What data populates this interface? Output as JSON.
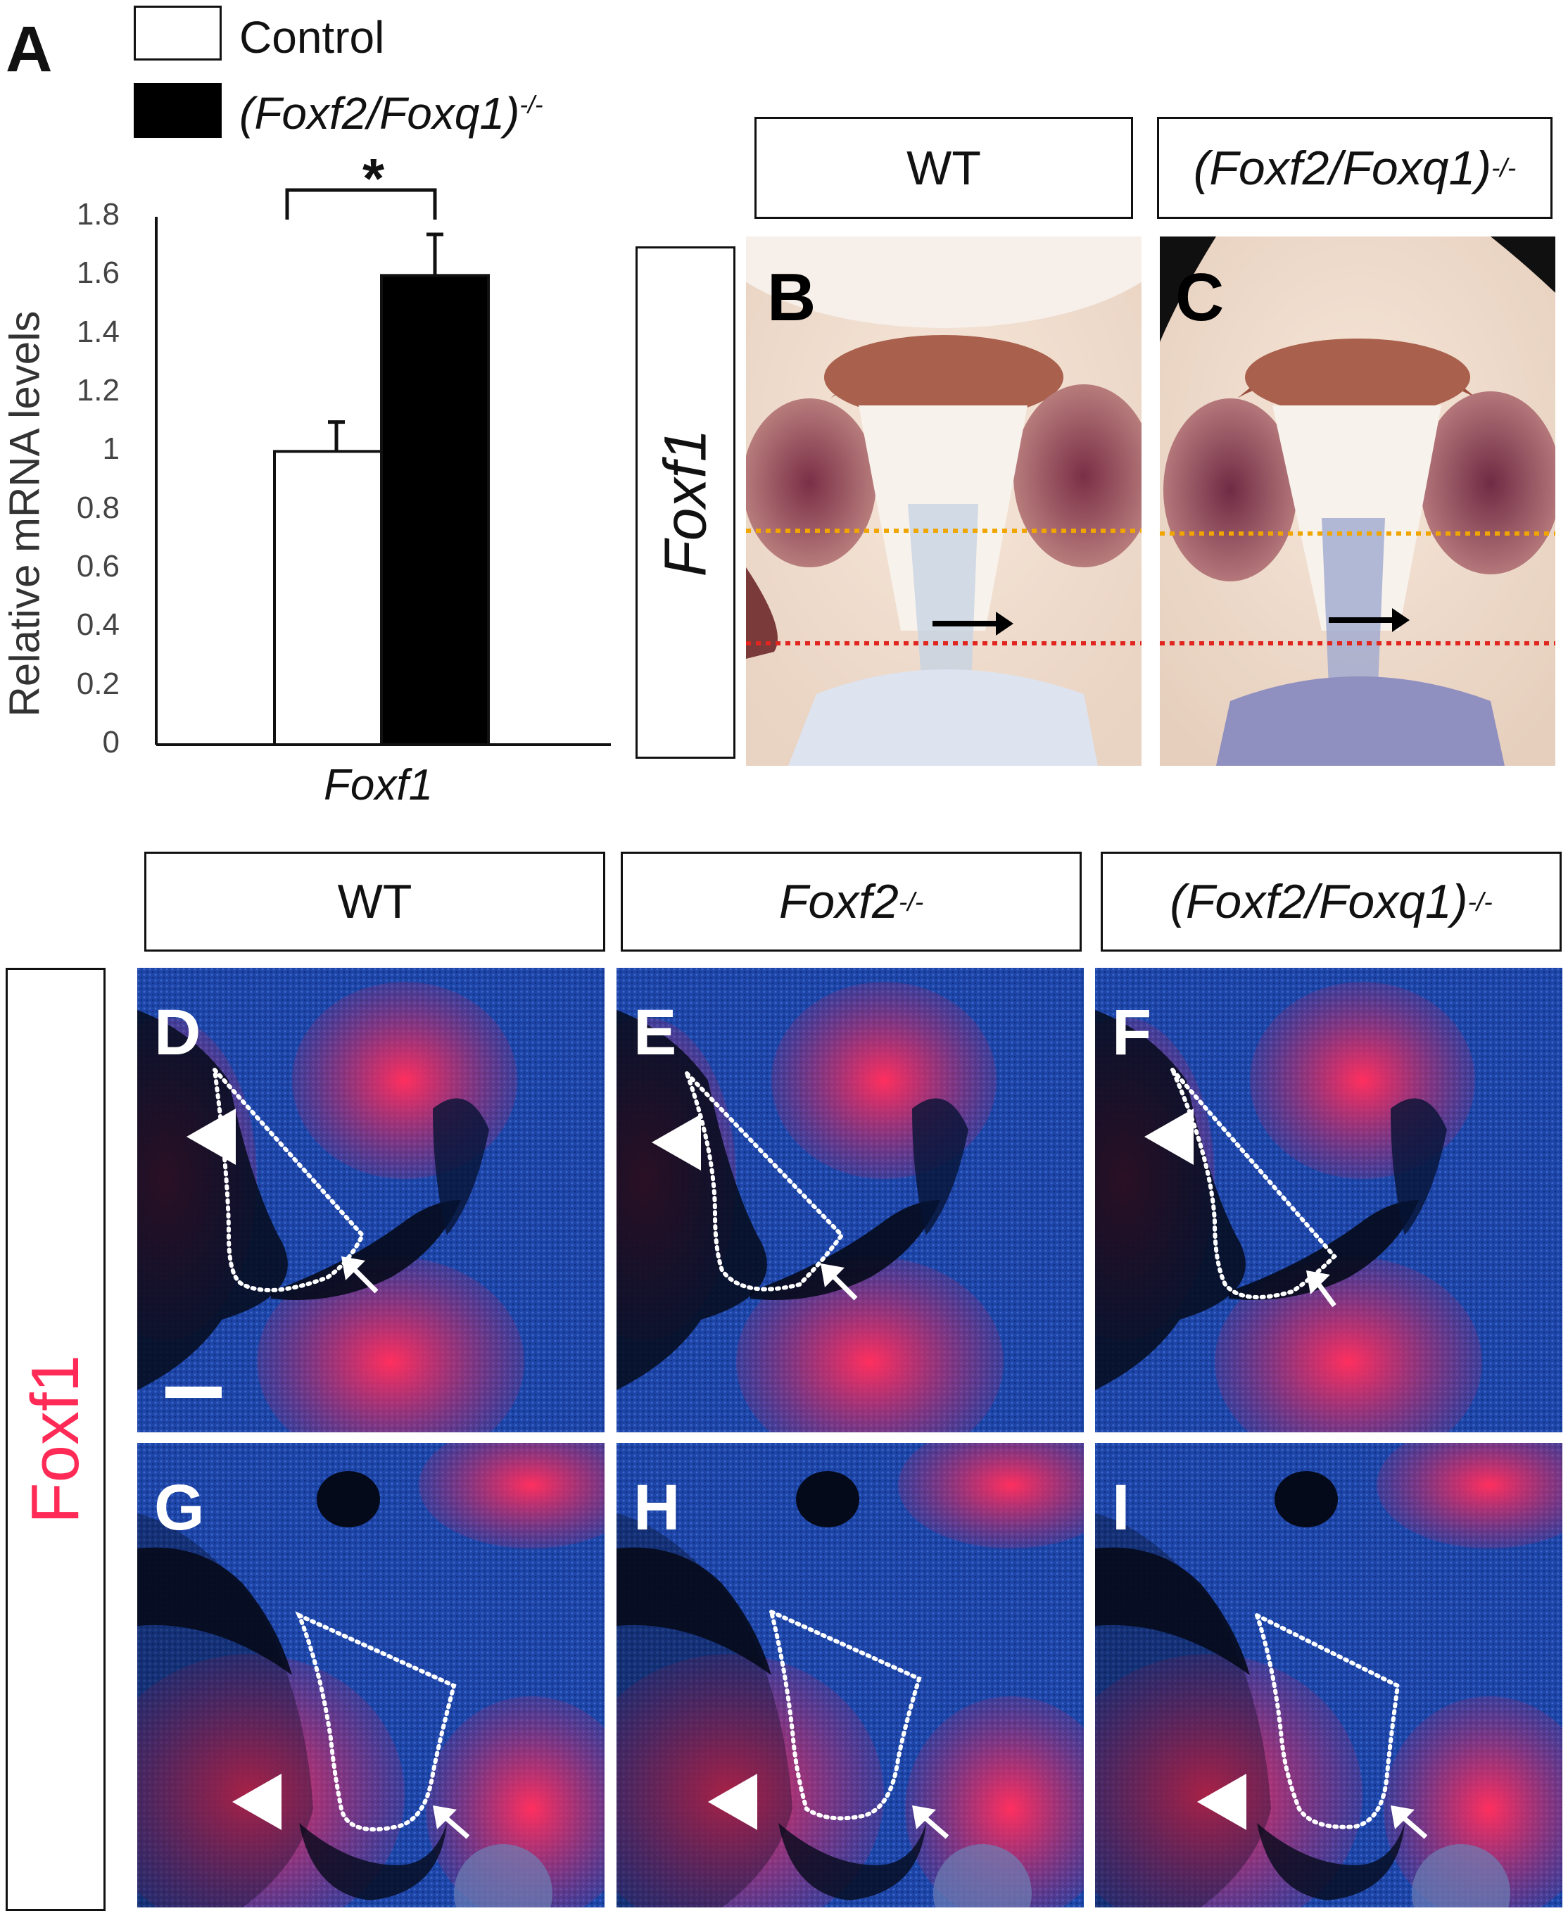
{
  "panels": {
    "a": {
      "letter": "A"
    },
    "b": {
      "letter": "B"
    },
    "c": {
      "letter": "C"
    },
    "d": {
      "letter": "D"
    },
    "e": {
      "letter": "E"
    },
    "f": {
      "letter": "F"
    },
    "g": {
      "letter": "G"
    },
    "h": {
      "letter": "H"
    },
    "i": {
      "letter": "I"
    }
  },
  "legend": {
    "control": "Control",
    "mutant_main": "(Foxf2/Foxq1)",
    "mutant_sup": "-/-"
  },
  "significance": "*",
  "chart_data": {
    "type": "bar",
    "categories": [
      "Foxf1"
    ],
    "series": [
      {
        "name": "Control",
        "values": [
          1.0
        ],
        "error": [
          0.1
        ],
        "color": "#ffffff"
      },
      {
        "name": "(Foxf2/Foxq1)-/-",
        "values": [
          1.6
        ],
        "error": [
          0.14
        ],
        "color": "#000000"
      }
    ],
    "ylabel": "Relative mRNA levels",
    "xlabel": "Foxf1",
    "ylim": [
      0,
      1.8
    ],
    "yticks": [
      "0",
      "0.2",
      "0.4",
      "0.6",
      "0.8",
      "1",
      "1.2",
      "1.4",
      "1.6",
      "1.8"
    ],
    "grid": false,
    "legend": "top-left"
  },
  "top_headers": {
    "wt": "WT",
    "mutant_main": "(Foxf2/Foxq1)",
    "mutant_sup": "-/-"
  },
  "top_row_label": "Foxf1",
  "bottom_headers": {
    "wt": "WT",
    "foxf2_main": "Foxf2",
    "foxf2_sup": "-/-",
    "mutant_main": "(Foxf2/Foxq1)",
    "mutant_sup": "-/-"
  },
  "bottom_row_label": "Foxf1",
  "colors": {
    "stain_red": "#ff2a55",
    "nuclear_blue": "#1a3f9e",
    "orange_line": "#f0a500",
    "red_line": "#e0261e"
  }
}
